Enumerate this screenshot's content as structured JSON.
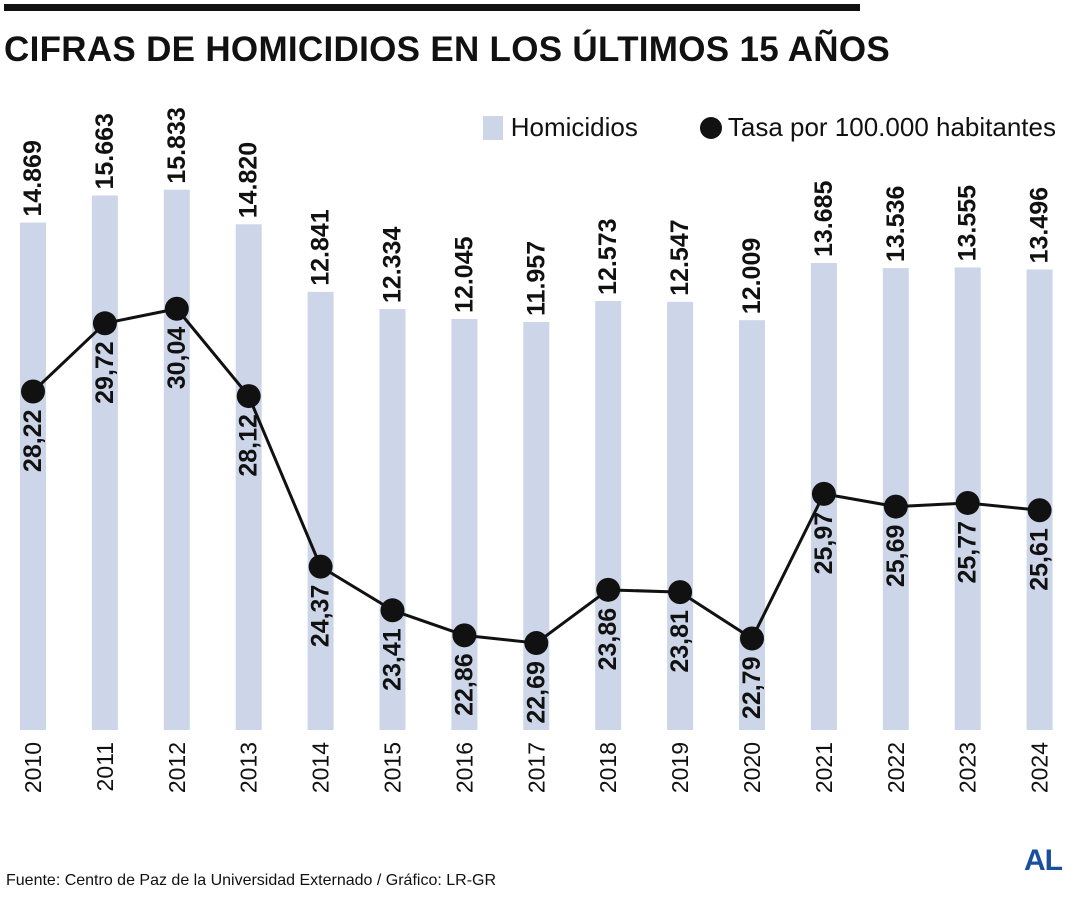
{
  "title": "CIFRAS DE HOMICIDIOS EN LOS ÚLTIMOS 15 AÑOS",
  "legend": {
    "bars_label": "Homicidios",
    "line_label": "Tasa por 100.000 habitantes"
  },
  "source": "Fuente: Centro de Paz de la Universidad Externado / Gráfico: LR-GR",
  "logo_text": "AL",
  "colors": {
    "bar": "#cdd6e8",
    "line": "#111111",
    "logo": "#1a4fa0"
  },
  "chart_data": {
    "type": "bar",
    "categories": [
      "2010",
      "2011",
      "2012",
      "2013",
      "2014",
      "2015",
      "2016",
      "2017",
      "2018",
      "2019",
      "2020",
      "2021",
      "2022",
      "2023",
      "2024"
    ],
    "series": [
      {
        "name": "Homicidios",
        "type": "bar",
        "values": [
          14869,
          15663,
          15833,
          14820,
          12841,
          12334,
          12045,
          11957,
          12573,
          12547,
          12009,
          13685,
          13536,
          13555,
          13496
        ],
        "labels": [
          "14.869",
          "15.663",
          "15.833",
          "14.820",
          "12.841",
          "12.334",
          "12.045",
          "11.957",
          "12.573",
          "12.547",
          "12.009",
          "13.685",
          "13.536",
          "13.555",
          "13.496"
        ]
      },
      {
        "name": "Tasa por 100.000 habitantes",
        "type": "line",
        "values": [
          28.22,
          29.72,
          30.04,
          28.12,
          24.37,
          23.41,
          22.86,
          22.69,
          23.86,
          23.81,
          22.79,
          25.97,
          25.69,
          25.77,
          25.61
        ],
        "labels": [
          "28,22",
          "29,72",
          "30,04",
          "28,12",
          "24,37",
          "23,41",
          "22,86",
          "22,69",
          "23,86",
          "23,81",
          "22,79",
          "25,97",
          "25,69",
          "25,77",
          "25,61"
        ]
      }
    ],
    "bar_axis_range": [
      0,
      16000
    ],
    "line_axis_range": [
      18.8,
      33.2
    ],
    "grid": false,
    "legend_position": "top-right",
    "axes_visible": false,
    "tick_label_orientation": "vertical"
  }
}
